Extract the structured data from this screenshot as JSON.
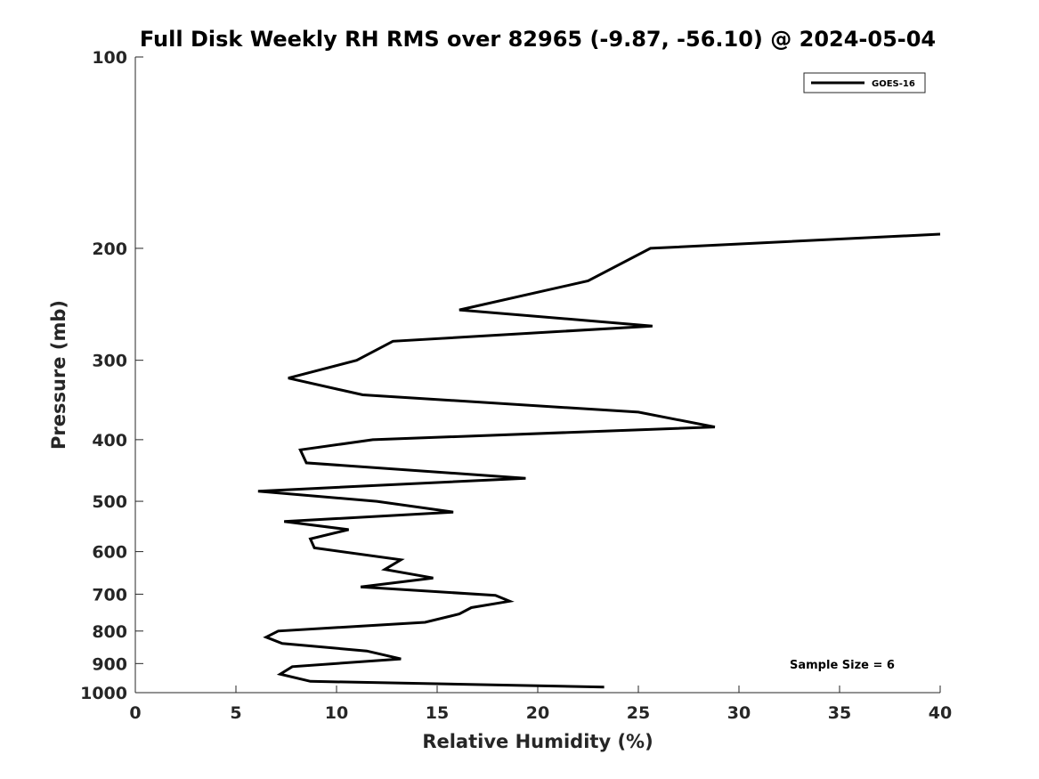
{
  "chart_data": {
    "type": "line",
    "title": "Full Disk Weekly RH RMS over 82965 (-9.87, -56.10) @ 2024-05-04",
    "xlabel": "Relative Humidity (%)",
    "ylabel": "Pressure (mb)",
    "xlim": [
      0,
      40
    ],
    "ylim": [
      100,
      1000
    ],
    "y_scale": "log",
    "y_reversed": true,
    "x_ticks": [
      "0",
      "5",
      "10",
      "15",
      "20",
      "25",
      "30",
      "35",
      "40"
    ],
    "y_ticks": [
      "100",
      "200",
      "300",
      "400",
      "500",
      "600",
      "700",
      "800",
      "900",
      "1000"
    ],
    "legend": {
      "position": "top-right",
      "entries": [
        "GOES-16"
      ]
    },
    "annotations": [
      "Sample Size = 6"
    ],
    "series": [
      {
        "name": "GOES-16",
        "color": "#000000",
        "points": [
          [
            40.0,
            190
          ],
          [
            25.6,
            200
          ],
          [
            22.5,
            225
          ],
          [
            16.1,
            250
          ],
          [
            25.7,
            265
          ],
          [
            12.8,
            280
          ],
          [
            11.0,
            300
          ],
          [
            7.6,
            320
          ],
          [
            11.3,
            340
          ],
          [
            25.0,
            362
          ],
          [
            28.8,
            382
          ],
          [
            11.8,
            400
          ],
          [
            8.2,
            415
          ],
          [
            8.5,
            435
          ],
          [
            19.4,
            460
          ],
          [
            6.1,
            482
          ],
          [
            12.0,
            500
          ],
          [
            15.8,
            520
          ],
          [
            7.4,
            538
          ],
          [
            10.6,
            554
          ],
          [
            8.7,
            573
          ],
          [
            8.9,
            592
          ],
          [
            13.2,
            618
          ],
          [
            12.4,
            640
          ],
          [
            14.8,
            660
          ],
          [
            11.2,
            682
          ],
          [
            17.9,
            703
          ],
          [
            18.6,
            718
          ],
          [
            16.7,
            735
          ],
          [
            16.1,
            752
          ],
          [
            14.4,
            775
          ],
          [
            7.1,
            800
          ],
          [
            6.5,
            818
          ],
          [
            7.3,
            837
          ],
          [
            11.5,
            860
          ],
          [
            13.2,
            885
          ],
          [
            7.8,
            910
          ],
          [
            7.2,
            935
          ],
          [
            8.7,
            960
          ],
          [
            23.3,
            980
          ]
        ]
      }
    ]
  }
}
